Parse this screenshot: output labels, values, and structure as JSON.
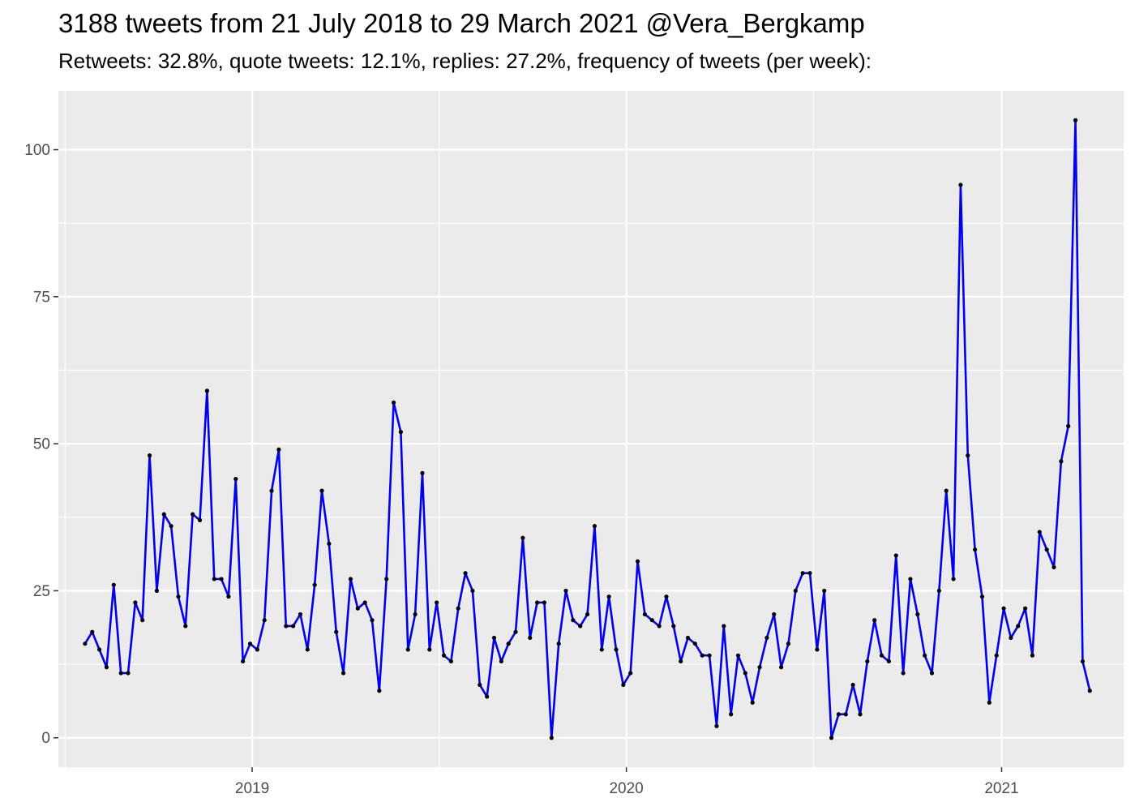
{
  "title": "3188 tweets from 21 July 2018 to 29 March 2021 @Vera_Bergkamp",
  "subtitle": "Retweets: 32.8%, quote tweets: 12.1%, replies: 27.2%, frequency of tweets (per week):",
  "colors": {
    "panel": "#ebebeb",
    "grid": "#ffffff",
    "line": "#0000ee",
    "point": "#000000",
    "tick_text": "#4d4d4d"
  },
  "chart_data": {
    "type": "line",
    "title": "3188 tweets from 21 July 2018 to 29 March 2021 @Vera_Bergkamp",
    "subtitle": "Retweets: 32.8%, quote tweets: 12.1%, replies: 27.2%, frequency of tweets (per week):",
    "xlabel": "",
    "ylabel": "",
    "x_type": "date",
    "xlim": [
      "2018-06-26",
      "2021-04-30"
    ],
    "ylim": [
      -5,
      110
    ],
    "x_ticks": [
      "2019-01-01",
      "2020-01-01",
      "2021-01-01"
    ],
    "x_tick_labels": [
      "2019",
      "2020",
      "2021"
    ],
    "y_ticks": [
      0,
      25,
      50,
      75,
      100
    ],
    "y_tick_labels": [
      "0",
      "25",
      "50",
      "75",
      "100"
    ],
    "grid": true,
    "series": [
      {
        "x": [
          "2018-07-22",
          "2018-07-29",
          "2018-08-05",
          "2018-08-12",
          "2018-08-19",
          "2018-08-26",
          "2018-09-02",
          "2018-09-09",
          "2018-09-16",
          "2018-09-23",
          "2018-09-30",
          "2018-10-07",
          "2018-10-14",
          "2018-10-21",
          "2018-10-28",
          "2018-11-04",
          "2018-11-11",
          "2018-11-18",
          "2018-11-25",
          "2018-12-02",
          "2018-12-09",
          "2018-12-16",
          "2018-12-23",
          "2018-12-30",
          "2019-01-06",
          "2019-01-13",
          "2019-01-20",
          "2019-01-27",
          "2019-02-03",
          "2019-02-10",
          "2019-02-17",
          "2019-02-24",
          "2019-03-03",
          "2019-03-10",
          "2019-03-17",
          "2019-03-24",
          "2019-03-31",
          "2019-04-07",
          "2019-04-14",
          "2019-04-21",
          "2019-04-28",
          "2019-05-05",
          "2019-05-12",
          "2019-05-19",
          "2019-05-26",
          "2019-06-02",
          "2019-06-09",
          "2019-06-16",
          "2019-06-23",
          "2019-06-30",
          "2019-07-07",
          "2019-07-14",
          "2019-07-21",
          "2019-07-28",
          "2019-08-04",
          "2019-08-11",
          "2019-08-18",
          "2019-08-25",
          "2019-09-01",
          "2019-09-08",
          "2019-09-15",
          "2019-09-22",
          "2019-09-29",
          "2019-10-06",
          "2019-10-13",
          "2019-10-20",
          "2019-10-27",
          "2019-11-03",
          "2019-11-10",
          "2019-11-17",
          "2019-11-24",
          "2019-12-01",
          "2019-12-08",
          "2019-12-15",
          "2019-12-22",
          "2019-12-29",
          "2020-01-05",
          "2020-01-12",
          "2020-01-19",
          "2020-01-26",
          "2020-02-02",
          "2020-02-09",
          "2020-02-16",
          "2020-02-23",
          "2020-03-01",
          "2020-03-08",
          "2020-03-15",
          "2020-03-22",
          "2020-03-29",
          "2020-04-05",
          "2020-04-12",
          "2020-04-19",
          "2020-04-26",
          "2020-05-03",
          "2020-05-10",
          "2020-05-17",
          "2020-05-24",
          "2020-05-31",
          "2020-06-07",
          "2020-06-14",
          "2020-06-21",
          "2020-06-28",
          "2020-07-05",
          "2020-07-12",
          "2020-07-19",
          "2020-07-26",
          "2020-08-02",
          "2020-08-09",
          "2020-08-16",
          "2020-08-23",
          "2020-08-30",
          "2020-09-06",
          "2020-09-13",
          "2020-09-20",
          "2020-09-27",
          "2020-10-04",
          "2020-10-11",
          "2020-10-18",
          "2020-10-25",
          "2020-11-01",
          "2020-11-08",
          "2020-11-15",
          "2020-11-22",
          "2020-11-29",
          "2020-12-06",
          "2020-12-13",
          "2020-12-20",
          "2020-12-27",
          "2021-01-03",
          "2021-01-10",
          "2021-01-17",
          "2021-01-24",
          "2021-01-31",
          "2021-02-07",
          "2021-02-14",
          "2021-02-21",
          "2021-02-28",
          "2021-03-07",
          "2021-03-14",
          "2021-03-21",
          "2021-03-28"
        ],
        "y": [
          16,
          18,
          15,
          12,
          26,
          11,
          11,
          23,
          20,
          48,
          25,
          38,
          36,
          24,
          19,
          38,
          37,
          59,
          27,
          27,
          24,
          44,
          13,
          16,
          15,
          20,
          42,
          49,
          19,
          19,
          21,
          15,
          26,
          42,
          33,
          18,
          11,
          27,
          22,
          23,
          20,
          8,
          27,
          57,
          52,
          15,
          21,
          45,
          15,
          23,
          14,
          13,
          22,
          28,
          25,
          9,
          7,
          17,
          13,
          16,
          18,
          34,
          17,
          23,
          23,
          0,
          16,
          25,
          20,
          19,
          21,
          36,
          15,
          24,
          15,
          9,
          11,
          30,
          21,
          20,
          19,
          24,
          19,
          13,
          17,
          16,
          14,
          14,
          2,
          19,
          4,
          14,
          11,
          6,
          12,
          17,
          21,
          12,
          16,
          25,
          28,
          28,
          15,
          25,
          0,
          4,
          4,
          9,
          4,
          13,
          20,
          14,
          13,
          31,
          11,
          27,
          21,
          14,
          11,
          25,
          42,
          27,
          94,
          48,
          32,
          24,
          6,
          14,
          22,
          17,
          19,
          22,
          14,
          35,
          32,
          29,
          47,
          53,
          105,
          13,
          8
        ]
      }
    ]
  }
}
